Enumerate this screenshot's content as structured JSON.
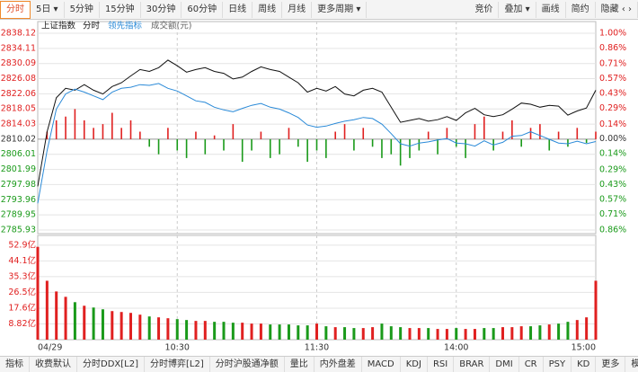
{
  "toolbar": {
    "left": [
      "分时",
      "5日 ▾",
      "5分钟",
      "15分钟",
      "30分钟",
      "60分钟",
      "日线",
      "周线",
      "月线",
      "更多周期 ▾"
    ],
    "right": [
      "竞价",
      "叠加 ▾",
      "画线",
      "简约",
      "隐藏 ‹ ›"
    ]
  },
  "bottom_tabs": {
    "left": [
      "指标",
      "收费默认",
      "分时DDX[L2]",
      "分时博弈[L2]",
      "分时沪股通净额",
      "量比",
      "内外盘差",
      "MACD",
      "KDJ",
      "RSI",
      "BRAR",
      "DMI",
      "CR",
      "PSY",
      "KD",
      "更多"
    ],
    "right": [
      "模板"
    ]
  },
  "chart_data": {
    "type": "intraday",
    "title": "上证指数",
    "volume_label": "成交额(元)",
    "up_color": "#e02020",
    "down_color": "#1a9a1a",
    "flat_color": "#333333",
    "x": [
      0,
      4,
      8,
      12,
      16,
      20,
      24,
      28,
      32,
      36,
      40,
      44,
      48,
      52,
      56,
      60,
      64,
      68,
      72,
      76,
      80,
      84,
      88,
      92,
      96,
      100,
      104,
      108,
      112,
      116,
      120,
      124,
      128,
      132,
      136,
      140,
      144,
      148,
      152,
      156,
      160,
      164,
      168,
      172,
      176,
      180,
      184,
      188,
      192,
      196,
      200,
      204,
      208,
      212,
      216,
      220,
      224,
      228,
      232,
      236,
      240
    ],
    "xlim": [
      0,
      240
    ],
    "xticks": [
      {
        "value": 0,
        "label": "04/29"
      },
      {
        "value": 60,
        "label": "10:30"
      },
      {
        "value": 120,
        "label": "11:30"
      },
      {
        "value": 180,
        "label": "14:00"
      },
      {
        "value": 240,
        "label": "15:00"
      }
    ],
    "ylim": [
      2785.93,
      2838.12
    ],
    "yticks": [
      2838.12,
      2834.11,
      2830.09,
      2826.08,
      2822.06,
      2818.05,
      2814.03,
      2810.02,
      2806.01,
      2801.99,
      2797.98,
      2793.96,
      2789.95,
      2785.93
    ],
    "y2lim": [
      -0.86,
      1.0
    ],
    "y2ticks": [
      {
        "value": 1.0,
        "label": "1.00%"
      },
      {
        "value": 0.86,
        "label": "0.86%"
      },
      {
        "value": 0.71,
        "label": "0.71%"
      },
      {
        "value": 0.57,
        "label": "0.57%"
      },
      {
        "value": 0.43,
        "label": "0.43%"
      },
      {
        "value": 0.29,
        "label": "0.29%"
      },
      {
        "value": 0.14,
        "label": "0.14%"
      },
      {
        "value": 0,
        "label": "0.00%"
      },
      {
        "value": -0.14,
        "label": "0.14%"
      },
      {
        "value": -0.29,
        "label": "0.29%"
      },
      {
        "value": -0.43,
        "label": "0.43%"
      },
      {
        "value": -0.57,
        "label": "0.57%"
      },
      {
        "value": -0.71,
        "label": "0.71%"
      },
      {
        "value": -0.86,
        "label": "0.86%"
      }
    ],
    "grid": true,
    "series": [
      {
        "name": "分时",
        "color": "#111111",
        "values": [
          2797.5,
          2812,
          2821,
          2823.5,
          2823,
          2824.5,
          2823,
          2822,
          2824,
          2825,
          2826.8,
          2828.5,
          2828,
          2829,
          2831,
          2829.5,
          2827.8,
          2828.5,
          2829,
          2828,
          2827.5,
          2826,
          2826.5,
          2828,
          2829.2,
          2828.5,
          2828,
          2826.5,
          2825,
          2822.5,
          2823.5,
          2822.8,
          2824,
          2822,
          2821.5,
          2823,
          2823.5,
          2822.5,
          2818.5,
          2814.5,
          2815,
          2815.5,
          2814.8,
          2815.2,
          2816,
          2815,
          2817,
          2818.2,
          2816.5,
          2816,
          2816.5,
          2818,
          2819.6,
          2819.3,
          2818.5,
          2819,
          2818.8,
          2816.4,
          2817.5,
          2818.3,
          2823
        ]
      },
      {
        "name": "领先指标",
        "color": "#2a8ad8",
        "values": [
          2793,
          2807,
          2818,
          2822,
          2823.3,
          2822.5,
          2821.5,
          2820.5,
          2822.5,
          2823.5,
          2823.8,
          2824.5,
          2824.3,
          2824.8,
          2823.5,
          2822.8,
          2821.5,
          2820.2,
          2819.8,
          2818.5,
          2817.8,
          2817.3,
          2818.2,
          2819,
          2819.5,
          2818.5,
          2818,
          2817,
          2815.8,
          2813.8,
          2813.2,
          2813.5,
          2814.2,
          2814.8,
          2815.2,
          2815.8,
          2815.5,
          2814,
          2811.5,
          2808.8,
          2808.2,
          2809,
          2809.3,
          2809.8,
          2810.2,
          2809,
          2808.8,
          2808.2,
          2809.6,
          2808.5,
          2809.2,
          2810.8,
          2811,
          2812,
          2811,
          2810,
          2809,
          2808.8,
          2809.5,
          2808.8,
          2809.4
        ]
      }
    ],
    "strength": [
      0,
      2,
      5,
      6,
      8,
      5,
      3,
      4,
      7,
      3,
      5,
      2,
      -2,
      -4,
      3,
      -3,
      -5,
      2,
      -4,
      1,
      -3,
      4,
      -6,
      -3,
      2,
      -5,
      -4,
      3,
      -2,
      -6,
      -3,
      -5,
      2,
      4,
      -3,
      3,
      -2,
      -5,
      -4,
      -7,
      -5,
      -3,
      2,
      -4,
      3,
      -2,
      -5,
      4,
      6,
      -3,
      2,
      5,
      -2,
      3,
      4,
      -3,
      2,
      -2,
      3,
      -1,
      2
    ],
    "volume": [
      52,
      33,
      27,
      24,
      21,
      19,
      18,
      17,
      16,
      15.5,
      15,
      14,
      13,
      12.5,
      12,
      11.5,
      11,
      10.5,
      10.5,
      10,
      10,
      9.5,
      9.5,
      9,
      9,
      8.5,
      8.5,
      8.5,
      8,
      8,
      9,
      7.5,
      7,
      7,
      6.5,
      6.5,
      7,
      9,
      7.5,
      7,
      6.5,
      6.5,
      6.5,
      6,
      6,
      6.5,
      6,
      6,
      6.5,
      6.5,
      7,
      7,
      7.5,
      7.5,
      8,
      8.5,
      9,
      10,
      11,
      12.5,
      33
    ],
    "vlim": [
      0,
      58.4
    ],
    "vticks": [
      {
        "value": 52.9,
        "label": "52.9亿"
      },
      {
        "value": 44.1,
        "label": "44.1亿"
      },
      {
        "value": 35.3,
        "label": "35.3亿"
      },
      {
        "value": 26.5,
        "label": "26.5亿"
      },
      {
        "value": 17.6,
        "label": "17.6亿"
      },
      {
        "value": 8.82,
        "label": "8.82亿"
      }
    ]
  }
}
